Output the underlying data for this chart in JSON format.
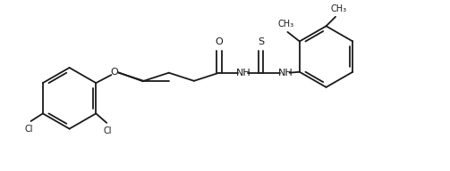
{
  "bg_color": "#ffffff",
  "line_color": "#1a1a1a",
  "line_width": 1.3,
  "figsize": [
    5.03,
    1.92
  ],
  "dpi": 100,
  "xlim": [
    0,
    10.5
  ],
  "ylim": [
    0.5,
    4.5
  ]
}
